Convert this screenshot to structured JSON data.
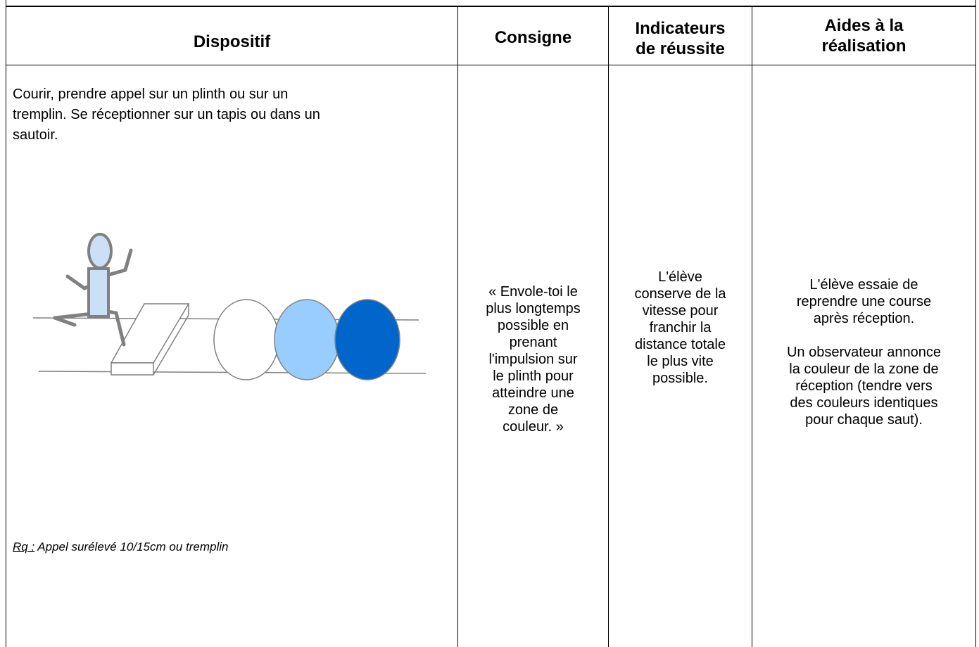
{
  "header": {
    "columns": [
      {
        "lines": [
          "Dispositif"
        ]
      },
      {
        "lines": [
          "Consigne"
        ]
      },
      {
        "lines": [
          "Indicateurs",
          "de réussite"
        ]
      },
      {
        "lines": [
          "Aides à la",
          "réalisation"
        ]
      }
    ]
  },
  "body": {
    "dispositif": {
      "lines": [
        "Courir, prendre appel sur un plinth ou sur un",
        "tremplin. Se réceptionner sur un tapis ou dans un",
        "sautoir."
      ]
    },
    "note": {
      "label": "Rq :",
      "text": " Appel surélevé 10/15cm ou tremplin"
    },
    "consigne": {
      "lines": [
        "« Envole-toi le",
        "plus longtemps",
        "possible en",
        "prenant",
        "l'impulsion sur",
        "le plinth pour",
        "atteindre une",
        "zone de",
        "couleur. »"
      ]
    },
    "indicateurs": {
      "lines": [
        "L'élève",
        "conserve de la",
        "vitesse pour",
        "franchir la",
        "distance totale",
        "le plus vite",
        "possible."
      ]
    },
    "aides": {
      "paragraphs": [
        [
          "L'élève essaie de",
          "reprendre une course",
          "après réception."
        ],
        [
          "Un observateur annonce",
          "la couleur de la zone de",
          "réception (tendre vers",
          "des couleurs identiques",
          "pour chaque saut)."
        ]
      ]
    }
  }
}
